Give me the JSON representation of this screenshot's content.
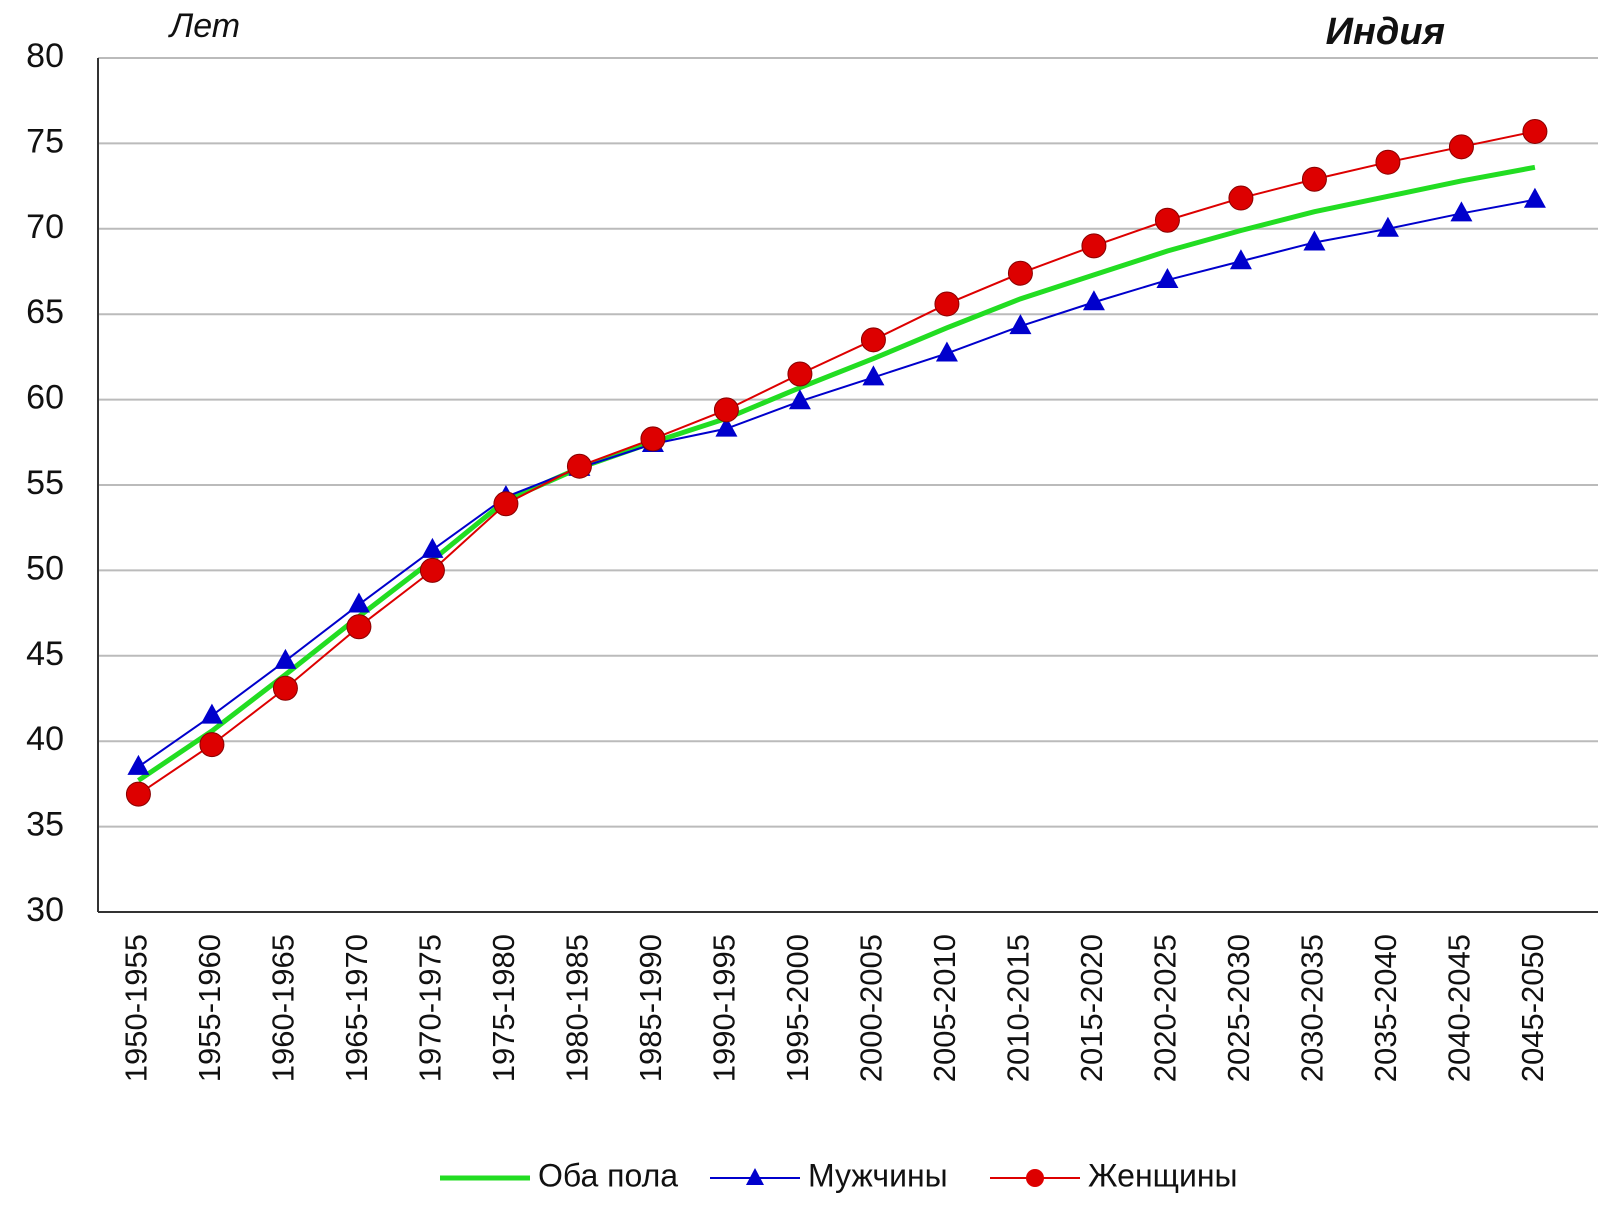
{
  "chart_data": {
    "type": "line",
    "title": "Индия",
    "y_label": "Лет",
    "categories": [
      "1950-1955",
      "1955-1960",
      "1960-1965",
      "1965-1970",
      "1970-1975",
      "1975-1980",
      "1980-1985",
      "1985-1990",
      "1990-1995",
      "1995-2000",
      "2000-2005",
      "2005-2010",
      "2010-2015",
      "2015-2020",
      "2020-2025",
      "2025-2030",
      "2030-2035",
      "2035-2040",
      "2040-2045",
      "2045-2050"
    ],
    "series": [
      {
        "name": "Оба пола",
        "color": "#22dd22",
        "marker": "none",
        "values": [
          37.7,
          40.6,
          43.9,
          47.3,
          50.6,
          54.1,
          56.0,
          57.5,
          58.9,
          60.7,
          62.4,
          64.2,
          65.9,
          67.3,
          68.7,
          69.9,
          71.0,
          71.9,
          72.8,
          73.6
        ]
      },
      {
        "name": "Мужчины",
        "color": "#0000cc",
        "marker": "triangle",
        "values": [
          38.5,
          41.5,
          44.7,
          48.0,
          51.2,
          54.3,
          56.0,
          57.4,
          58.3,
          59.9,
          61.3,
          62.7,
          64.3,
          65.7,
          67.0,
          68.1,
          69.2,
          70.0,
          70.9,
          71.7
        ]
      },
      {
        "name": "Женщины",
        "color": "#dd0000",
        "marker": "circle",
        "values": [
          36.9,
          39.8,
          43.1,
          46.7,
          50.0,
          53.9,
          56.1,
          57.7,
          59.4,
          61.5,
          63.5,
          65.6,
          67.4,
          69.0,
          70.5,
          71.8,
          72.9,
          73.9,
          74.8,
          75.7
        ]
      }
    ],
    "ylim": [
      30,
      80
    ],
    "yticks": [
      30,
      35,
      40,
      45,
      50,
      55,
      60,
      65,
      70,
      75,
      80
    ],
    "grid": true,
    "legend": "bottom"
  }
}
